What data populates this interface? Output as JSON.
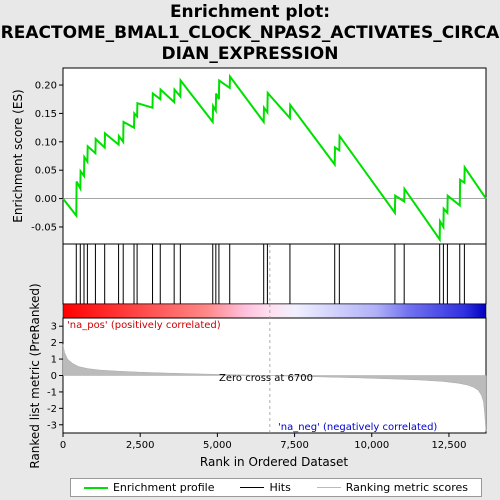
{
  "title_lines": [
    "Enrichment plot:",
    "REACTOME_BMAL1_CLOCK_NPAS2_ACTIVATES_CIRCA",
    "DIAN_EXPRESSION"
  ],
  "colors": {
    "enrichment": "#00e000",
    "hits": "#000000",
    "ranking": "#bbbbbb",
    "pos_label": "#cc0000",
    "neg_label": "#0000cc",
    "zero_line": "#999999"
  },
  "labels": {
    "es_ylabel": "Enrichment score (ES)",
    "metric_ylabel": "Ranked list metric (PreRanked)",
    "xlabel": "Rank in Ordered Dataset",
    "pos_label": "'na_pos' (positively correlated)",
    "neg_label": "'na_neg' (negatively correlated)",
    "zero_cross": "Zero cross at 6700"
  },
  "legend": {
    "enrichment": "Enrichment profile",
    "hits": "Hits",
    "ranking": "Ranking metric scores"
  },
  "chart_data": {
    "type": "line",
    "x_range": [
      0,
      13700
    ],
    "x_ticks": [
      0,
      2500,
      5000,
      7500,
      10000,
      12500
    ],
    "x_tick_labels": [
      "0",
      "2,500",
      "5,000",
      "7,500",
      "10,000",
      "12,500"
    ],
    "es_ylim": [
      -0.08,
      0.23
    ],
    "es_ticks": [
      -0.05,
      0.0,
      0.05,
      0.1,
      0.15,
      0.2
    ],
    "es_tick_labels": [
      "-0.05",
      "0.00",
      "0.05",
      "0.10",
      "0.15",
      "0.20"
    ],
    "metric_ylim": [
      -3.5,
      3.5
    ],
    "metric_ticks": [
      -3,
      -2,
      -1,
      0,
      1,
      2,
      3
    ],
    "metric_tick_labels": [
      "-3",
      "-2",
      "-1",
      "0",
      "1",
      "2",
      "3"
    ],
    "zero_cross": 6700,
    "es_profile": {
      "x": [
        0,
        430,
        440,
        560,
        570,
        680,
        690,
        790,
        800,
        1050,
        1060,
        1350,
        1360,
        1800,
        1810,
        1950,
        1960,
        2300,
        2310,
        2400,
        2410,
        2900,
        2910,
        3150,
        3160,
        3600,
        3610,
        3800,
        3810,
        4850,
        4860,
        4950,
        4960,
        5050,
        5060,
        5400,
        5410,
        6500,
        6510,
        6620,
        6630,
        7350,
        7360,
        8800,
        8810,
        8950,
        8960,
        10750,
        10760,
        11050,
        11060,
        12200,
        12210,
        12320,
        12330,
        12450,
        12460,
        12850,
        12860,
        13000,
        13010,
        13700
      ],
      "y": [
        0.0,
        -0.03,
        0.03,
        0.018,
        0.048,
        0.04,
        0.073,
        0.065,
        0.092,
        0.08,
        0.105,
        0.09,
        0.115,
        0.095,
        0.11,
        0.1,
        0.135,
        0.125,
        0.15,
        0.145,
        0.168,
        0.16,
        0.185,
        0.175,
        0.192,
        0.17,
        0.192,
        0.18,
        0.208,
        0.135,
        0.163,
        0.155,
        0.185,
        0.175,
        0.208,
        0.195,
        0.215,
        0.135,
        0.16,
        0.152,
        0.186,
        0.142,
        0.165,
        0.06,
        0.09,
        0.085,
        0.11,
        -0.025,
        0.005,
        -0.005,
        0.017,
        -0.072,
        -0.04,
        -0.05,
        -0.018,
        -0.025,
        0.005,
        -0.012,
        0.033,
        0.028,
        0.055,
        0.0
      ]
    },
    "hits": [
      430,
      560,
      680,
      790,
      1050,
      1350,
      1800,
      1950,
      2300,
      2400,
      2900,
      3150,
      3600,
      3800,
      4850,
      4950,
      5050,
      5400,
      6500,
      6620,
      7350,
      8800,
      8950,
      10750,
      11050,
      12200,
      12320,
      12450,
      12850,
      13000
    ],
    "ranking_metric": {
      "x": [
        0,
        50,
        150,
        300,
        500,
        800,
        1200,
        1800,
        2500,
        3500,
        4500,
        5500,
        6700,
        7500,
        8500,
        9500,
        10500,
        11500,
        12300,
        12800,
        13100,
        13300,
        13450,
        13550,
        13620,
        13660,
        13700
      ],
      "y": [
        1.9,
        1.4,
        1.0,
        0.75,
        0.55,
        0.42,
        0.33,
        0.26,
        0.2,
        0.14,
        0.09,
        0.04,
        0.0,
        -0.05,
        -0.09,
        -0.14,
        -0.2,
        -0.27,
        -0.36,
        -0.47,
        -0.58,
        -0.72,
        -0.9,
        -1.2,
        -1.6,
        -2.4,
        -3.4
      ]
    },
    "bar_gradient": [
      "#ff0000",
      "#ffb6c8",
      "#ffffff",
      "#d0d0ff",
      "#0000e0"
    ]
  }
}
